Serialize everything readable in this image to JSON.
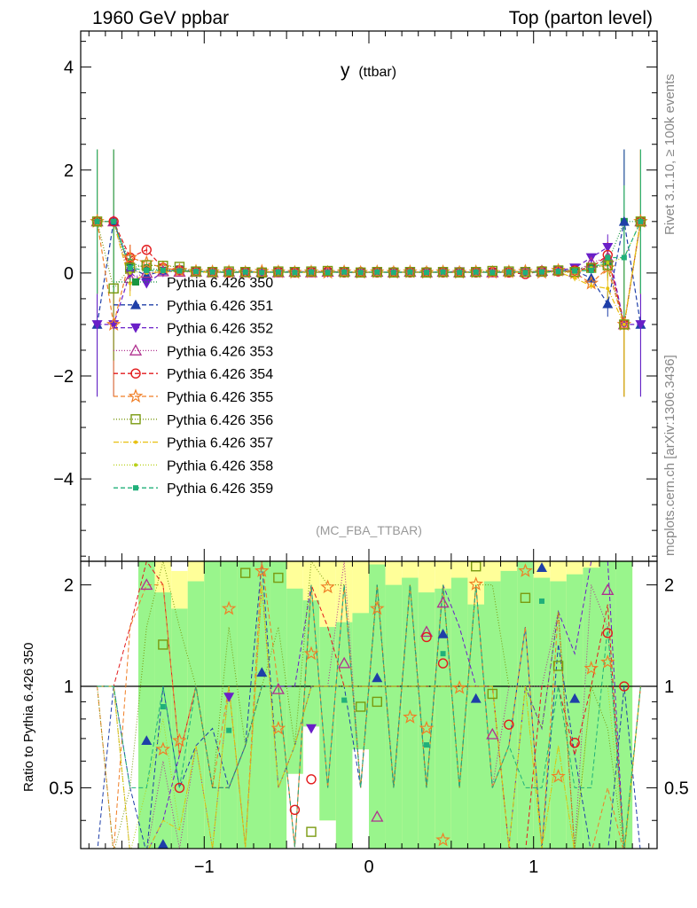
{
  "header": {
    "left": "1960 GeV ppbar",
    "right": "Top (parton level)"
  },
  "side_labels": {
    "rivet": "Rivet 3.1.10, ≥ 100k events",
    "mcplots": "mcplots.cern.ch [arXiv:1306.3436]"
  },
  "chart_data": {
    "type": "line",
    "title": "y",
    "title_sub": "(ttbar)",
    "analysis": "(MC_FBA_TTBAR)",
    "xlabel": "",
    "ylabel": "",
    "xlim": [
      -1.75,
      1.75
    ],
    "ylim": [
      -5.6,
      4.7
    ],
    "ratio_ylabel": "Ratio to Pythia 6.426 350",
    "ratio_ylim": [
      0.33,
      2.35
    ],
    "x_ticks": [
      -1,
      0,
      1
    ],
    "x_tick_labels": [
      "−1",
      "0",
      "1"
    ],
    "y_ticks": [
      -4,
      -2,
      0,
      2,
      4
    ],
    "y_tick_labels": [
      "−4",
      "−2",
      "0",
      "2",
      "4"
    ],
    "ratio_ticks": [
      0.5,
      1,
      2
    ],
    "ratio_tick_labels": [
      "0.5",
      "1",
      "2"
    ],
    "x": [
      -1.65,
      -1.55,
      -1.45,
      -1.35,
      -1.25,
      -1.15,
      -1.05,
      -0.95,
      -0.85,
      -0.75,
      -0.65,
      -0.55,
      -0.45,
      -0.35,
      -0.25,
      -0.15,
      -0.05,
      0.05,
      0.15,
      0.25,
      0.35,
      0.45,
      0.55,
      0.65,
      0.75,
      0.85,
      0.95,
      1.05,
      1.15,
      1.25,
      1.35,
      1.45,
      1.55,
      1.65
    ],
    "series": [
      {
        "name": "Pythia 6.426 350",
        "color": "#1a9641",
        "marker": "square-filled",
        "dash": "1,2",
        "values": [
          1.0,
          1.0,
          0.2,
          0.1,
          0.05,
          0.08,
          0.03,
          0.04,
          0.02,
          0.03,
          0.01,
          0.02,
          0.03,
          0.01,
          0.02,
          0.01,
          0.02,
          0.01,
          0.02,
          0.01,
          0.02,
          0.01,
          0.02,
          0.01,
          0.02,
          0.03,
          0.02,
          0.04,
          0.03,
          0.08,
          0.1,
          0.2,
          1.0,
          1.0
        ]
      },
      {
        "name": "Pythia 6.426 351",
        "color": "#1f3fa8",
        "marker": "triangle-up-filled",
        "dash": "5,3",
        "values": [
          -1.0,
          1.0,
          0.1,
          -0.05,
          0.05,
          0.04,
          0.02,
          0.03,
          0.01,
          0.02,
          0.03,
          0.01,
          0.02,
          0.01,
          0.02,
          0.01,
          0.01,
          0.02,
          0.01,
          0.02,
          0.01,
          0.02,
          0.01,
          0.02,
          0.01,
          0.02,
          0.03,
          0.01,
          0.04,
          0.05,
          -0.1,
          -0.6,
          1.0,
          -1.0
        ]
      },
      {
        "name": "Pythia 6.426 352",
        "color": "#6a1fc8",
        "marker": "triangle-down-filled",
        "dash": "5,3",
        "values": [
          -1.0,
          -1.0,
          0.0,
          -0.2,
          0.02,
          0.05,
          0.03,
          0.02,
          0.01,
          0.02,
          0.01,
          0.02,
          0.03,
          0.02,
          0.01,
          0.02,
          0.01,
          0.02,
          0.01,
          0.02,
          0.01,
          0.02,
          0.03,
          0.01,
          0.02,
          0.01,
          0.02,
          0.03,
          0.05,
          0.1,
          0.3,
          0.5,
          -1.0,
          -1.0
        ]
      },
      {
        "name": "Pythia 6.426 353",
        "color": "#b0308f",
        "marker": "triangle-up-open",
        "dash": "1,2",
        "values": [
          1.0,
          1.0,
          -0.1,
          0.0,
          0.03,
          0.02,
          0.02,
          0.01,
          0.02,
          0.01,
          0.02,
          0.01,
          0.02,
          0.01,
          0.02,
          0.03,
          0.01,
          0.02,
          0.01,
          0.02,
          0.01,
          0.02,
          0.01,
          0.02,
          0.01,
          0.03,
          0.02,
          0.04,
          0.05,
          0.02,
          0.2,
          0.3,
          -1.0,
          1.0
        ]
      },
      {
        "name": "Pythia 6.426 354",
        "color": "#e31a1c",
        "marker": "circle-open",
        "dash": "5,3",
        "values": [
          1.0,
          1.0,
          0.3,
          0.45,
          0.1,
          0.05,
          0.03,
          0.02,
          0.01,
          0.02,
          0.01,
          0.02,
          0.01,
          0.02,
          0.03,
          0.01,
          0.02,
          0.01,
          0.02,
          0.01,
          0.02,
          0.01,
          0.02,
          0.01,
          0.02,
          0.01,
          -0.02,
          0.04,
          0.03,
          0.05,
          0.1,
          0.35,
          -1.0,
          1.0
        ]
      },
      {
        "name": "Pythia 6.426 355",
        "color": "#f07e26",
        "marker": "star-open",
        "dash": "5,3",
        "values": [
          1.0,
          -1.0,
          0.3,
          0.2,
          0.1,
          0.05,
          0.03,
          0.02,
          0.02,
          0.01,
          0.03,
          0.02,
          0.01,
          0.02,
          0.01,
          0.02,
          0.01,
          0.02,
          0.01,
          0.02,
          0.01,
          0.02,
          0.01,
          0.02,
          0.01,
          0.02,
          0.03,
          0.01,
          0.05,
          0.0,
          -0.2,
          0.1,
          -1.0,
          1.0
        ]
      },
      {
        "name": "Pythia 6.426 356",
        "color": "#7a9a10",
        "marker": "square-open",
        "dash": "1,2",
        "values": [
          1.0,
          -0.3,
          0.1,
          0.15,
          0.14,
          0.12,
          0.03,
          0.02,
          0.03,
          0.02,
          0.01,
          0.03,
          0.02,
          0.03,
          0.04,
          0.02,
          0.01,
          0.02,
          0.01,
          0.02,
          0.01,
          0.02,
          0.01,
          0.02,
          0.04,
          0.03,
          0.02,
          0.03,
          0.05,
          0.02,
          0.1,
          0.15,
          -1.0,
          1.0
        ]
      },
      {
        "name": "Pythia 6.426 357",
        "color": "#e8c010",
        "marker": "dot",
        "dash": "6,2,1,2",
        "values": [
          1.0,
          1.0,
          -0.2,
          0.0,
          0.02,
          0.03,
          0.02,
          0.01,
          0.02,
          0.01,
          0.02,
          0.01,
          0.02,
          0.01,
          0.02,
          0.01,
          0.02,
          0.01,
          0.02,
          0.01,
          0.02,
          0.01,
          0.02,
          0.01,
          0.02,
          0.01,
          0.02,
          0.01,
          0.02,
          -0.1,
          -0.25,
          -0.3,
          -1.0,
          1.0
        ]
      },
      {
        "name": "Pythia 6.426 358",
        "color": "#b8d018",
        "marker": "dot",
        "dash": "1,2",
        "values": [
          1.0,
          1.0,
          0.0,
          0.05,
          0.04,
          0.03,
          0.02,
          0.01,
          0.02,
          0.01,
          0.02,
          0.01,
          0.02,
          0.01,
          0.02,
          0.01,
          0.02,
          0.01,
          0.02,
          0.01,
          0.02,
          0.01,
          0.02,
          0.01,
          0.02,
          0.01,
          0.02,
          0.01,
          0.02,
          0.0,
          0.1,
          0.2,
          0.3,
          1.0
        ]
      },
      {
        "name": "Pythia 6.426 359",
        "color": "#20b07a",
        "marker": "square-small",
        "dash": "5,3",
        "values": [
          1.0,
          1.0,
          0.1,
          0.05,
          0.05,
          0.04,
          0.03,
          0.02,
          0.01,
          0.02,
          0.01,
          0.02,
          0.01,
          0.02,
          0.01,
          0.02,
          0.01,
          0.02,
          0.01,
          0.02,
          0.01,
          0.02,
          0.01,
          0.02,
          0.01,
          0.02,
          0.01,
          0.02,
          0.03,
          0.04,
          0.05,
          0.3,
          0.3,
          1.0
        ]
      }
    ],
    "ratio_bands": {
      "x": [
        -1.35,
        -1.25,
        -1.15,
        -1.05,
        -0.95,
        -0.85,
        -0.75,
        -0.65,
        -0.55,
        -0.45,
        -0.35,
        -0.25,
        -0.15,
        -0.05,
        0.05,
        0.15,
        0.25,
        0.35,
        0.45,
        0.55,
        0.65,
        0.75,
        0.85,
        0.95,
        1.05,
        1.15,
        1.25,
        1.35,
        1.45,
        1.55
      ],
      "green_high": [
        2.35,
        1.9,
        1.7,
        2.05,
        2.35,
        2.35,
        2.35,
        2.35,
        2.35,
        1.95,
        1.8,
        1.5,
        1.55,
        1.65,
        2.3,
        2.0,
        2.1,
        1.9,
        1.95,
        2.1,
        1.75,
        2.05,
        2.2,
        2.35,
        2.1,
        2.05,
        2.15,
        2.25,
        2.35,
        2.35
      ],
      "yellow_high": [
        2.35,
        2.35,
        2.2,
        2.35,
        2.35,
        2.35,
        2.35,
        2.35,
        2.35,
        2.35,
        2.35,
        2.35,
        2.35,
        2.35,
        2.35,
        2.35,
        2.35,
        2.35,
        2.35,
        2.35,
        2.35,
        2.35,
        2.35,
        2.35,
        2.35,
        2.35,
        2.35,
        2.35,
        2.35,
        2.35
      ],
      "yellow_low": [
        0.33,
        0.33,
        0.33,
        0.33,
        0.33,
        0.33,
        0.33,
        0.33,
        0.33,
        0.55,
        0.76,
        0.4,
        0.33,
        0.65,
        0.33,
        0.33,
        0.33,
        0.33,
        0.33,
        0.33,
        0.33,
        0.33,
        0.33,
        0.33,
        0.33,
        0.33,
        0.33,
        0.33,
        0.33,
        0.33
      ]
    },
    "ratio_points": [
      {
        "series": 1,
        "marker": "triangle-up-filled",
        "color": "#1f3fa8",
        "x": -1.35,
        "y": 0.69
      },
      {
        "series": 3,
        "marker": "triangle-up-open",
        "color": "#b0308f",
        "x": -1.35,
        "y": 2.0
      },
      {
        "series": 6,
        "marker": "square-open",
        "color": "#7a9a10",
        "x": -1.25,
        "y": 1.33
      },
      {
        "series": 9,
        "marker": "square-small",
        "color": "#20b07a",
        "x": -1.25,
        "y": 0.87
      },
      {
        "series": 5,
        "marker": "star-open",
        "color": "#f07e26",
        "x": -1.25,
        "y": 0.65
      },
      {
        "series": 1,
        "marker": "triangle-up-filled",
        "color": "#1f3fa8",
        "x": -1.25,
        "y": 0.34
      },
      {
        "series": 5,
        "marker": "star-open",
        "color": "#f07e26",
        "x": -1.15,
        "y": 0.69
      },
      {
        "series": 4,
        "marker": "circle-open",
        "color": "#e31a1c",
        "x": -1.15,
        "y": 0.5
      },
      {
        "series": 5,
        "marker": "star-open",
        "color": "#f07e26",
        "x": -0.85,
        "y": 1.7
      },
      {
        "series": 2,
        "marker": "triangle-down-filled",
        "color": "#6a1fc8",
        "x": -0.85,
        "y": 0.93
      },
      {
        "series": 9,
        "marker": "square-small",
        "color": "#20b07a",
        "x": -0.85,
        "y": 0.74
      },
      {
        "series": 6,
        "marker": "square-open",
        "color": "#7a9a10",
        "x": -0.75,
        "y": 2.17
      },
      {
        "series": 5,
        "marker": "star-open",
        "color": "#f07e26",
        "x": -0.65,
        "y": 2.2
      },
      {
        "series": 1,
        "marker": "triangle-up-filled",
        "color": "#1f3fa8",
        "x": -0.65,
        "y": 1.1
      },
      {
        "series": 6,
        "marker": "square-open",
        "color": "#7a9a10",
        "x": -0.55,
        "y": 2.1
      },
      {
        "series": 3,
        "marker": "triangle-up-open",
        "color": "#b0308f",
        "x": -0.55,
        "y": 0.98
      },
      {
        "series": 5,
        "marker": "star-open",
        "color": "#f07e26",
        "x": -0.55,
        "y": 0.75
      },
      {
        "series": 4,
        "marker": "circle-open",
        "color": "#e31a1c",
        "x": -0.45,
        "y": 0.43
      },
      {
        "series": 5,
        "marker": "star-open",
        "color": "#f07e26",
        "x": -0.35,
        "y": 1.25
      },
      {
        "series": 2,
        "marker": "triangle-down-filled",
        "color": "#6a1fc8",
        "x": -0.35,
        "y": 0.75
      },
      {
        "series": 4,
        "marker": "circle-open",
        "color": "#e31a1c",
        "x": -0.35,
        "y": 0.53
      },
      {
        "series": 6,
        "marker": "square-open",
        "color": "#7a9a10",
        "x": -0.35,
        "y": 0.37
      },
      {
        "series": 5,
        "marker": "star-open",
        "color": "#f07e26",
        "x": -0.25,
        "y": 1.97
      },
      {
        "series": 3,
        "marker": "triangle-up-open",
        "color": "#b0308f",
        "x": -0.15,
        "y": 1.17
      },
      {
        "series": 9,
        "marker": "square-small",
        "color": "#20b07a",
        "x": -0.15,
        "y": 0.91
      },
      {
        "series": 6,
        "marker": "square-open",
        "color": "#7a9a10",
        "x": -0.05,
        "y": 0.87
      },
      {
        "series": 5,
        "marker": "star-open",
        "color": "#f07e26",
        "x": 0.05,
        "y": 1.7
      },
      {
        "series": 1,
        "marker": "triangle-up-filled",
        "color": "#1f3fa8",
        "x": 0.05,
        "y": 1.06
      },
      {
        "series": 6,
        "marker": "square-open",
        "color": "#7a9a10",
        "x": 0.05,
        "y": 0.9
      },
      {
        "series": 3,
        "marker": "triangle-up-open",
        "color": "#b0308f",
        "x": 0.05,
        "y": 0.41
      },
      {
        "series": 5,
        "marker": "star-open",
        "color": "#f07e26",
        "x": 0.25,
        "y": 0.81
      },
      {
        "series": 3,
        "marker": "triangle-up-open",
        "color": "#b0308f",
        "x": 0.35,
        "y": 1.45
      },
      {
        "series": 4,
        "marker": "circle-open",
        "color": "#e31a1c",
        "x": 0.35,
        "y": 1.4
      },
      {
        "series": 5,
        "marker": "star-open",
        "color": "#f07e26",
        "x": 0.35,
        "y": 0.75
      },
      {
        "series": 9,
        "marker": "square-small",
        "color": "#20b07a",
        "x": 0.35,
        "y": 0.67
      },
      {
        "series": 3,
        "marker": "triangle-up-open",
        "color": "#b0308f",
        "x": 0.45,
        "y": 1.77
      },
      {
        "series": 1,
        "marker": "triangle-up-filled",
        "color": "#1f3fa8",
        "x": 0.45,
        "y": 1.43
      },
      {
        "series": 9,
        "marker": "square-small",
        "color": "#20b07a",
        "x": 0.45,
        "y": 1.25
      },
      {
        "series": 4,
        "marker": "circle-open",
        "color": "#e31a1c",
        "x": 0.45,
        "y": 1.17
      },
      {
        "series": 5,
        "marker": "star-open",
        "color": "#f07e26",
        "x": 0.45,
        "y": 0.35
      },
      {
        "series": 5,
        "marker": "star-open",
        "color": "#f07e26",
        "x": 0.55,
        "y": 0.99
      },
      {
        "series": 6,
        "marker": "square-open",
        "color": "#7a9a10",
        "x": 0.65,
        "y": 2.27
      },
      {
        "series": 5,
        "marker": "star-open",
        "color": "#f07e26",
        "x": 0.65,
        "y": 2.01
      },
      {
        "series": 1,
        "marker": "triangle-up-filled",
        "color": "#1f3fa8",
        "x": 0.65,
        "y": 0.92
      },
      {
        "series": 6,
        "marker": "square-open",
        "color": "#7a9a10",
        "x": 0.75,
        "y": 0.95
      },
      {
        "series": 3,
        "marker": "triangle-up-open",
        "color": "#b0308f",
        "x": 0.75,
        "y": 0.72
      },
      {
        "series": 4,
        "marker": "circle-open",
        "color": "#e31a1c",
        "x": 0.85,
        "y": 0.77
      },
      {
        "series": 5,
        "marker": "star-open",
        "color": "#f07e26",
        "x": 0.95,
        "y": 2.2
      },
      {
        "series": 6,
        "marker": "square-open",
        "color": "#7a9a10",
        "x": 0.95,
        "y": 1.83
      },
      {
        "series": 1,
        "marker": "triangle-up-filled",
        "color": "#1f3fa8",
        "x": 1.05,
        "y": 2.25
      },
      {
        "series": 9,
        "marker": "square-small",
        "color": "#20b07a",
        "x": 1.05,
        "y": 1.79
      },
      {
        "series": 6,
        "marker": "square-open",
        "color": "#7a9a10",
        "x": 1.15,
        "y": 1.15
      },
      {
        "series": 5,
        "marker": "star-open",
        "color": "#f07e26",
        "x": 1.15,
        "y": 0.54
      },
      {
        "series": 1,
        "marker": "triangle-up-filled",
        "color": "#1f3fa8",
        "x": 1.25,
        "y": 0.92
      },
      {
        "series": 4,
        "marker": "circle-open",
        "color": "#e31a1c",
        "x": 1.25,
        "y": 0.68
      },
      {
        "series": 5,
        "marker": "star-open",
        "color": "#f07e26",
        "x": 1.35,
        "y": 1.13
      },
      {
        "series": 3,
        "marker": "triangle-up-open",
        "color": "#b0308f",
        "x": 1.45,
        "y": 1.93
      },
      {
        "series": 4,
        "marker": "circle-open",
        "color": "#e31a1c",
        "x": 1.45,
        "y": 1.44
      },
      {
        "series": 5,
        "marker": "star-open",
        "color": "#f07e26",
        "x": 1.45,
        "y": 1.18
      },
      {
        "series": 4,
        "marker": "circle-open",
        "color": "#e31a1c",
        "x": 1.55,
        "y": 1.0
      }
    ]
  }
}
